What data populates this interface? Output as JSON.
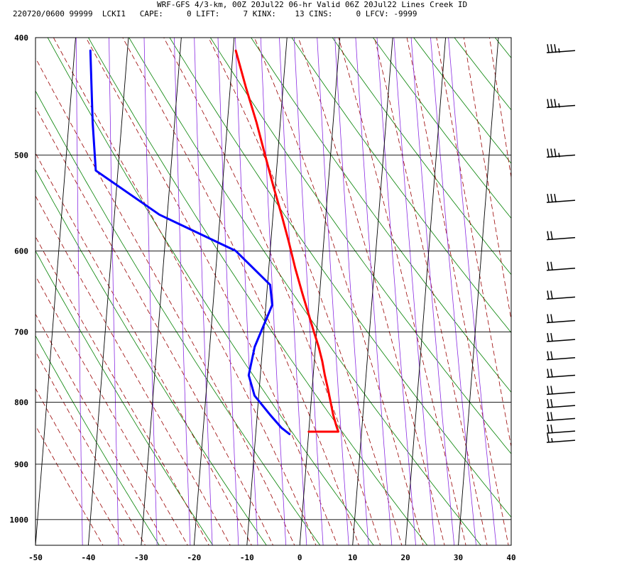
{
  "header": {
    "title": "WRF-GFS 4/3-km, 00Z 20Jul22 06-hr Valid 06Z 20Jul22 Lines Creek ID",
    "info": "220720/0600 99999  LCKI1   CAPE:     0 LIFT:     7 KINX:    13 CINS:     0 LFCV: -9999"
  },
  "chart_data": {
    "type": "line",
    "title": "",
    "xlabel": "",
    "ylabel": "",
    "x_ticks": [
      -50,
      -40,
      -30,
      -20,
      -10,
      0,
      10,
      20,
      30,
      40
    ],
    "x_tick_labels": [
      "-50",
      "-40",
      "-30",
      "-20",
      "-10",
      "0",
      "10",
      "20",
      "30",
      "40"
    ],
    "y_ticks": [
      400,
      500,
      600,
      700,
      800,
      900,
      1000
    ],
    "y_tick_labels": [
      "400",
      "500",
      "600",
      "700",
      "800",
      "900",
      "1000"
    ],
    "xlim": [
      -50,
      40
    ],
    "ylim": [
      1050,
      400
    ],
    "y_scale": "log",
    "skew_per_decade_pressure": 134.7,
    "grid": true,
    "series": [
      {
        "color": "#ff0000",
        "pressure": [
          410,
          440,
          470,
          500,
          530,
          560,
          590,
          620,
          650,
          680,
          700,
          720,
          740,
          760,
          780,
          800,
          820,
          836,
          846,
          846
        ],
        "values": [
          -19.5,
          -17.0,
          -14.5,
          -12.4,
          -10.4,
          -8.4,
          -6.6,
          -5.0,
          -3.3,
          -1.6,
          -0.5,
          0.6,
          1.5,
          2.2,
          3.0,
          3.7,
          4.4,
          5.1,
          5.6,
          0.0
        ]
      },
      {
        "color": "#0000ff",
        "pressure": [
          410,
          470,
          515,
          560,
          600,
          640,
          665,
          720,
          760,
          790,
          820,
          840,
          850
        ],
        "values": [
          -47.0,
          -45.5,
          -44.2,
          -31.5,
          -16.5,
          -9.5,
          -8.8,
          -11.5,
          -12.2,
          -10.8,
          -7.5,
          -5.2,
          -3.6
        ]
      }
    ],
    "wind_barbs": [
      {
        "pressure": 410,
        "speed_kt": 35
      },
      {
        "pressure": 455,
        "speed_kt": 35
      },
      {
        "pressure": 500,
        "speed_kt": 35
      },
      {
        "pressure": 545,
        "speed_kt": 30
      },
      {
        "pressure": 585,
        "speed_kt": 20
      },
      {
        "pressure": 620,
        "speed_kt": 20
      },
      {
        "pressure": 655,
        "speed_kt": 20
      },
      {
        "pressure": 685,
        "speed_kt": 20
      },
      {
        "pressure": 710,
        "speed_kt": 20
      },
      {
        "pressure": 735,
        "speed_kt": 20
      },
      {
        "pressure": 760,
        "speed_kt": 20
      },
      {
        "pressure": 785,
        "speed_kt": 20
      },
      {
        "pressure": 805,
        "speed_kt": 20
      },
      {
        "pressure": 825,
        "speed_kt": 20
      },
      {
        "pressure": 845,
        "speed_kt": 20
      },
      {
        "pressure": 860,
        "speed_kt": 15
      }
    ],
    "colors": {
      "isotherm": "#000000",
      "dry_adiabat": "#008000",
      "moist_adiabat": "#990000",
      "mixing_ratio": "#8a2be2"
    }
  }
}
